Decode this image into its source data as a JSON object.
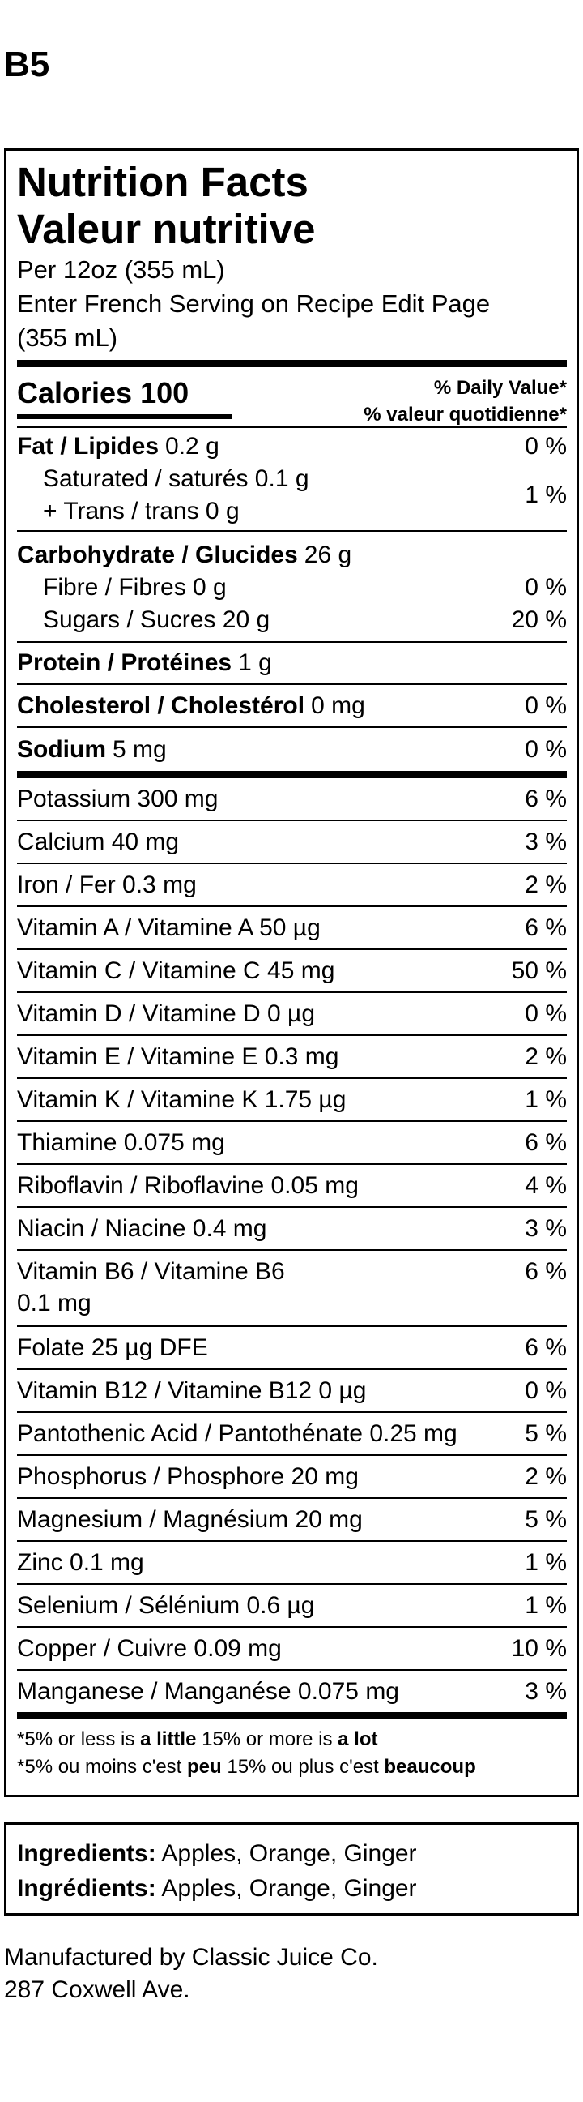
{
  "header": {
    "title": "B5"
  },
  "nutrition_facts": {
    "title_en": "Nutrition Facts",
    "title_fr": "Valeur nutritive",
    "serving": [
      "Per 12oz (355 mL)",
      "Enter French Serving on Recipe Edit Page",
      "(355 mL)"
    ],
    "calories": "Calories 100",
    "daily_value_en": "% Daily Value*",
    "daily_value_fr": "% valeur quotidienne*",
    "fat": {
      "label": "Fat / Lipides",
      "amount": "0.2 g",
      "dv": "0 %"
    },
    "saturated": "Saturated / saturés 0.1 g",
    "trans": "+ Trans / trans 0 g",
    "saturated_trans_dv": "1 %",
    "carbohydrate": {
      "label": "Carbohydrate / Glucides",
      "amount": "26 g"
    },
    "fibre": {
      "label": "Fibre / Fibres 0 g",
      "dv": "0 %"
    },
    "sugars": {
      "label": "Sugars / Sucres 20 g",
      "dv": "20 %"
    },
    "protein": {
      "label": "Protein / Protéines",
      "amount": "1 g"
    },
    "cholesterol": {
      "label": "Cholesterol / Cholestérol",
      "amount": "0 mg",
      "dv": "0 %"
    },
    "sodium": {
      "label": "Sodium",
      "amount": "5 mg",
      "dv": "0 %"
    },
    "micronutrients": [
      {
        "label": "Potassium 300 mg",
        "dv": "6 %"
      },
      {
        "label": "Calcium 40 mg",
        "dv": "3 %"
      },
      {
        "label": "Iron / Fer 0.3 mg",
        "dv": "2 %"
      },
      {
        "label": "Vitamin A / Vitamine A 50 µg",
        "dv": "6 %"
      },
      {
        "label": "Vitamin C / Vitamine C 45 mg",
        "dv": "50 %"
      },
      {
        "label": "Vitamin D / Vitamine D 0 µg",
        "dv": "0 %"
      },
      {
        "label": "Vitamin E / Vitamine E 0.3 mg",
        "dv": "2 %"
      },
      {
        "label": "Vitamin K / Vitamine K 1.75 µg",
        "dv": "1 %"
      },
      {
        "label": "Thiamine 0.075 mg",
        "dv": "6 %"
      },
      {
        "label": "Riboflavin / Riboflavine 0.05 mg",
        "dv": "4 %"
      },
      {
        "label": "Niacin / Niacine 0.4 mg",
        "dv": "3 %"
      },
      {
        "label": [
          "Vitamin B6 / Vitamine B6",
          "0.1 mg"
        ],
        "dv": "6 %"
      },
      {
        "label": "Folate 25 µg DFE",
        "dv": "6 %"
      },
      {
        "label": "Vitamin B12 / Vitamine B12 0 µg",
        "dv": "0 %"
      },
      {
        "label": "Pantothenic Acid / Pantothénate 0.25 mg",
        "dv": "5 %"
      },
      {
        "label": "Phosphorus / Phosphore 20 mg",
        "dv": "2 %"
      },
      {
        "label": "Magnesium / Magnésium 20 mg",
        "dv": "5 %"
      },
      {
        "label": "Zinc 0.1 mg",
        "dv": "1 %"
      },
      {
        "label": "Selenium / Sélénium 0.6 µg",
        "dv": "1 %"
      },
      {
        "label": "Copper / Cuivre 0.09 mg",
        "dv": "10 %"
      },
      {
        "label": "Manganese / Manganése 0.075 mg",
        "dv": "3 %"
      }
    ],
    "footnote_en": [
      "*5% or less is ",
      "a little",
      " 15% or more is ",
      "a lot"
    ],
    "footnote_fr": [
      "*5% ou moins c'est ",
      "peu",
      " 15% ou plus c'est ",
      "beaucoup"
    ]
  },
  "ingredients": {
    "en": {
      "label": "Ingredients:",
      "text": "Apples, Orange, Ginger"
    },
    "fr": {
      "label": "Ingrédients:",
      "text": "Apples, Orange, Ginger"
    }
  },
  "manufacturer": [
    "Manufactured by Classic Juice Co.",
    "287 Coxwell Ave."
  ]
}
